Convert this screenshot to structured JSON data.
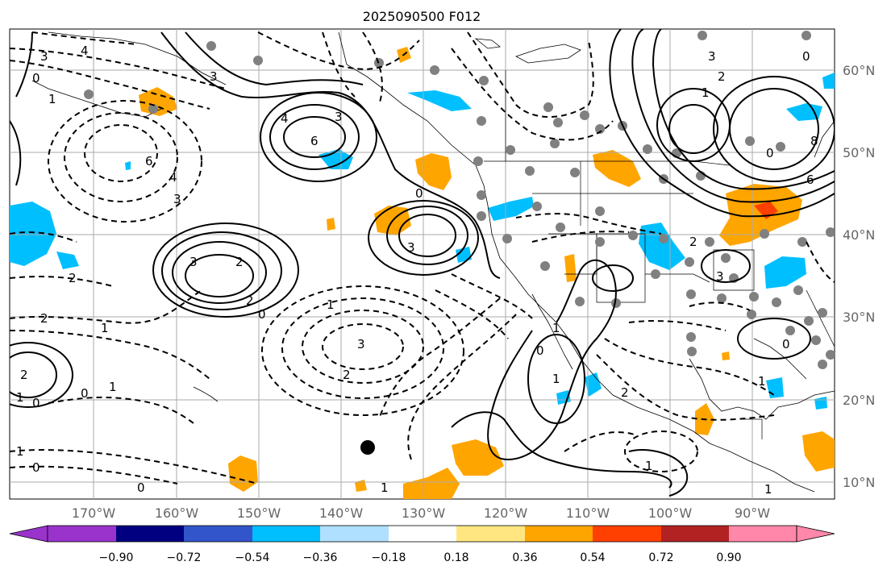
{
  "title": "2025090500 F012",
  "map": {
    "lon_ticks": [
      "170°W",
      "160°W",
      "150°W",
      "140°W",
      "130°W",
      "120°W",
      "110°W",
      "100°W",
      "90°W"
    ],
    "lat_ticks": [
      "60°N",
      "50°N",
      "40°N",
      "30°N",
      "20°N",
      "10°N"
    ],
    "contour_labels": [
      "3",
      "4",
      "0",
      "1",
      "6",
      "4",
      "3",
      "3",
      "6",
      "4",
      "3",
      "0",
      "3",
      "2",
      "3",
      "2",
      "0",
      "1",
      "2",
      "2",
      "3",
      "2",
      "1",
      "2",
      "0",
      "1",
      "0",
      "1",
      "0",
      "1",
      "1",
      "0",
      "1",
      "3",
      "1",
      "2",
      "6",
      "8",
      "0",
      "3",
      "2",
      "1",
      "0",
      "0",
      "2",
      "1",
      "1",
      "0",
      "1"
    ]
  },
  "colorbar": {
    "tick_labels": [
      "−0.90",
      "−0.72",
      "−0.54",
      "−0.36",
      "−0.18",
      "0.18",
      "0.36",
      "0.54",
      "0.72",
      "0.90"
    ],
    "colors": [
      "#9933cc",
      "#000080",
      "#3355cc",
      "#00bfff",
      "#b0e0ff",
      "#ffffff",
      "#ffe680",
      "#ffa500",
      "#ff4000",
      "#b22222",
      "#ff88aa"
    ]
  },
  "legend_colors": {
    "positive_fill": "#ffa500",
    "negative_fill": "#00bfff",
    "station_dots": "#808080",
    "marker": "#000000"
  }
}
